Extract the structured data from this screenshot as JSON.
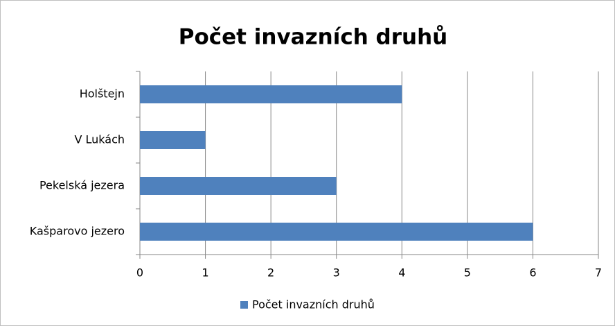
{
  "chart_data": {
    "type": "bar",
    "orientation": "horizontal",
    "title": "Počet invazních druhů",
    "categories": [
      "Holštejn",
      "V Lukách",
      "Pekelská jezera",
      "Kašparovo jezero"
    ],
    "series": [
      {
        "name": "Počet invazních druhů",
        "color": "#4f81bd",
        "values": [
          4,
          1,
          3,
          6
        ]
      }
    ],
    "xlim": [
      0,
      7
    ],
    "xticks": [
      0,
      1,
      2,
      3,
      4,
      5,
      6,
      7
    ],
    "grid": true,
    "legend": "bottom"
  }
}
